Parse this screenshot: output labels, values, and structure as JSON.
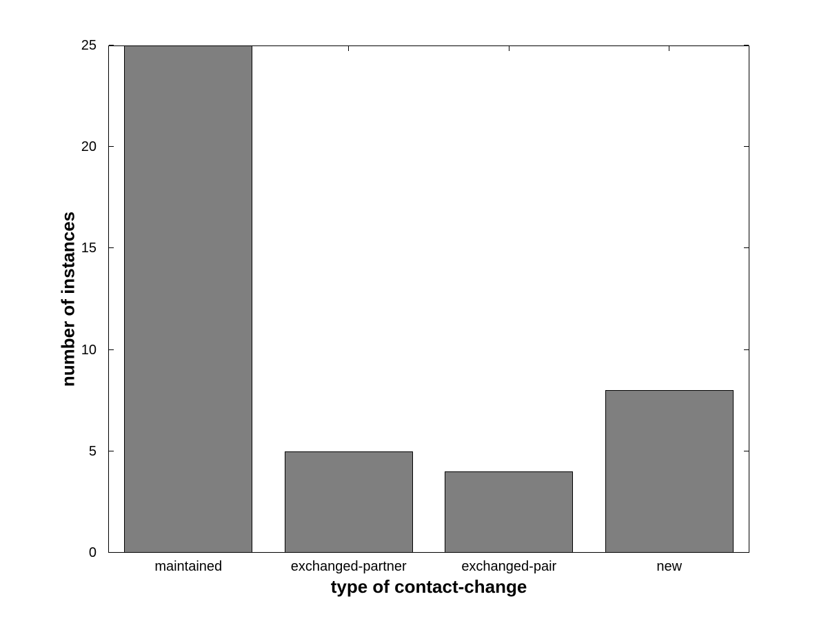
{
  "figure": {
    "background": "#ffffff"
  },
  "chart_data": {
    "type": "bar",
    "categories": [
      "maintained",
      "exchanged-partner",
      "exchanged-pair",
      "new"
    ],
    "values": [
      25,
      5,
      4,
      8
    ],
    "title": "",
    "xlabel": "type of contact-change",
    "ylabel": "number of instances",
    "ylim": [
      0,
      25
    ],
    "yticks": [
      0,
      5,
      10,
      15,
      20,
      25
    ],
    "bar_width_fraction": 0.8,
    "bar_color": "#7f7f7f",
    "bar_edge_color": "#000000",
    "axis_color": "#000000",
    "grid": false,
    "legend": null
  }
}
